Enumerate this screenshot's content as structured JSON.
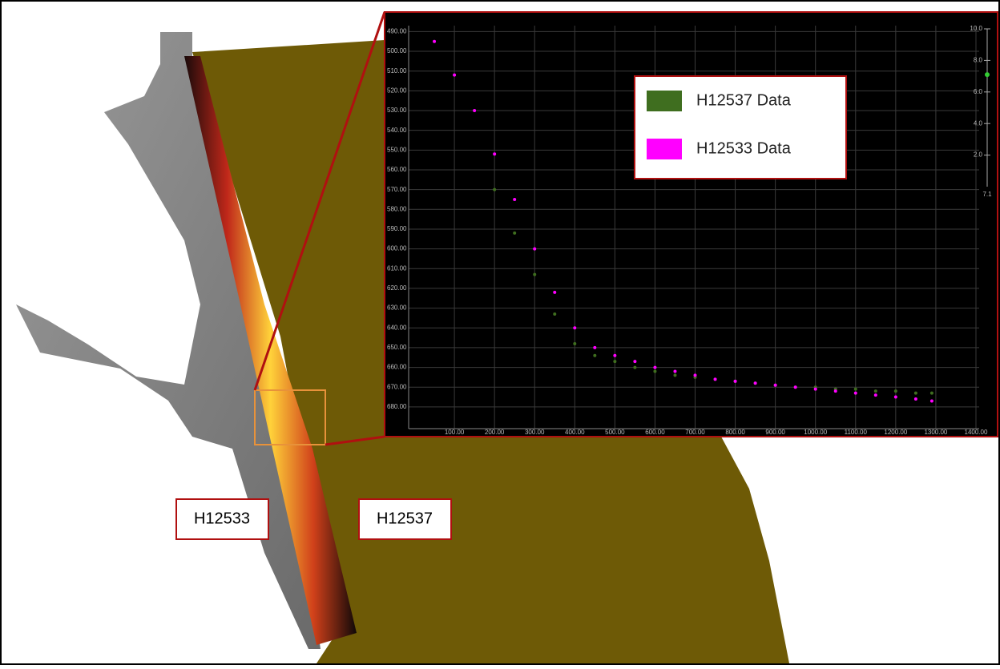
{
  "chart_data": {
    "type": "scatter",
    "series": [
      {
        "name": "H12537 Data",
        "color": "#3f6e1f",
        "x": [
          200,
          250,
          300,
          350,
          400,
          450,
          500,
          550,
          600,
          650,
          700,
          750,
          800,
          850,
          900,
          950,
          1000,
          1050,
          1100,
          1150,
          1200,
          1250,
          1290
        ],
        "values": [
          570,
          592,
          613,
          633,
          648,
          654,
          657,
          660,
          662,
          664,
          665,
          666,
          667,
          668,
          669,
          670,
          670,
          671,
          671,
          672,
          672,
          673,
          673
        ]
      },
      {
        "name": "H12533 Data",
        "color": "#ff00ff",
        "x": [
          50,
          100,
          150,
          200,
          250,
          300,
          350,
          400,
          450,
          500,
          550,
          600,
          650,
          700,
          750,
          800,
          850,
          900,
          950,
          1000,
          1050,
          1100,
          1150,
          1200,
          1250,
          1290
        ],
        "values": [
          495,
          512,
          530,
          552,
          575,
          600,
          622,
          640,
          650,
          654,
          657,
          660,
          662,
          664,
          666,
          667,
          668,
          669,
          670,
          671,
          672,
          673,
          674,
          675,
          676,
          677
        ]
      }
    ],
    "xlim": [
      -14,
      1408
    ],
    "ylim": [
      691,
      487
    ],
    "xticks": [
      {
        "value": 100,
        "label": "100.00"
      },
      {
        "value": 200,
        "label": "200.00"
      },
      {
        "value": 300,
        "label": "300.00"
      },
      {
        "value": 400,
        "label": "400.00"
      },
      {
        "value": 500,
        "label": "500.00"
      },
      {
        "value": 600,
        "label": "600.00"
      },
      {
        "value": 700,
        "label": "700.00"
      },
      {
        "value": 800,
        "label": "800.00"
      },
      {
        "value": 900,
        "label": "900.00"
      },
      {
        "value": 1000,
        "label": "1000.00"
      },
      {
        "value": 1100,
        "label": "1100.00"
      },
      {
        "value": 1200,
        "label": "1200.00"
      },
      {
        "value": 1300,
        "label": "1300.00"
      },
      {
        "value": 1400,
        "label": "1400.00"
      }
    ],
    "yticks": [
      {
        "value": 490,
        "label": "490.00"
      },
      {
        "value": 500,
        "label": "500.00"
      },
      {
        "value": 510,
        "label": "510.00"
      },
      {
        "value": 520,
        "label": "520.00"
      },
      {
        "value": 530,
        "label": "530.00"
      },
      {
        "value": 540,
        "label": "540.00"
      },
      {
        "value": 550,
        "label": "550.00"
      },
      {
        "value": 560,
        "label": "560.00"
      },
      {
        "value": 570,
        "label": "570.00"
      },
      {
        "value": 580,
        "label": "580.00"
      },
      {
        "value": 590,
        "label": "590.00"
      },
      {
        "value": 600,
        "label": "600.00"
      },
      {
        "value": 610,
        "label": "610.00"
      },
      {
        "value": 620,
        "label": "620.00"
      },
      {
        "value": 630,
        "label": "630.00"
      },
      {
        "value": 640,
        "label": "640.00"
      },
      {
        "value": 650,
        "label": "650.00"
      },
      {
        "value": 660,
        "label": "660.00"
      },
      {
        "value": 670,
        "label": "670.00"
      },
      {
        "value": 680,
        "label": "680.00"
      }
    ],
    "grid": true,
    "legend": "upper-right",
    "slider": {
      "lim": [
        0,
        10
      ],
      "ticks": [
        {
          "value": 10,
          "label": "10.0"
        },
        {
          "value": 8,
          "label": "8.0"
        },
        {
          "value": 6,
          "label": "6.0"
        },
        {
          "value": 4,
          "label": "4.0"
        },
        {
          "value": 2,
          "label": "2.0"
        }
      ],
      "value": 7.1,
      "value_label": "7.1"
    }
  },
  "map_labels": [
    "H12533",
    "H12537"
  ]
}
